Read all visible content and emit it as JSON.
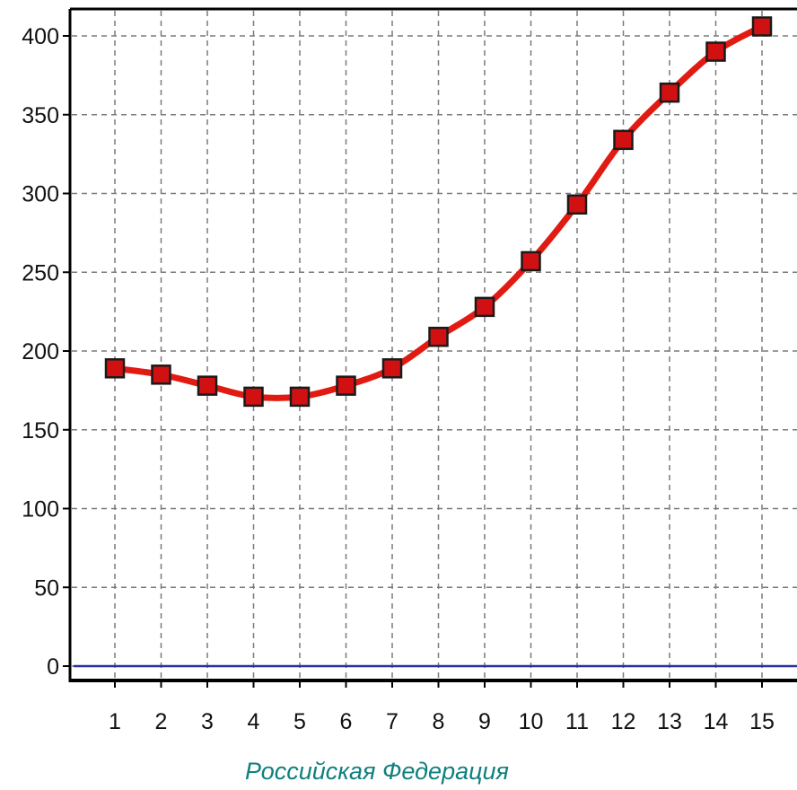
{
  "colors": {
    "background": "#ffffff",
    "axis": "#000000",
    "grid": "#7a7a7a",
    "main_line": "#e21b12",
    "marker_fill": "#d11111",
    "marker_stroke": "#1a1a1a",
    "baseline_line": "#2b2f9e",
    "x_label_color": "#0f7f7f"
  },
  "chart_data": {
    "type": "line",
    "title": "",
    "xlabel": "Российская Федерация",
    "ylabel": "",
    "categories": [
      "1",
      "2",
      "3",
      "4",
      "5",
      "6",
      "7",
      "8",
      "9",
      "10",
      "11",
      "12",
      "13",
      "14",
      "15"
    ],
    "x": [
      1,
      2,
      3,
      4,
      5,
      6,
      7,
      8,
      9,
      10,
      11,
      12,
      13,
      14,
      15
    ],
    "ylim": [
      0,
      400
    ],
    "yticks": [
      0,
      50,
      100,
      150,
      200,
      250,
      300,
      350,
      400
    ],
    "grid": true,
    "series": [
      {
        "values": [
          189,
          185,
          178,
          171,
          171,
          178,
          189,
          209,
          228,
          257,
          293,
          334,
          364,
          390,
          406
        ],
        "color": "#e21b12",
        "marker": "square"
      },
      {
        "values": [
          0,
          0,
          0,
          0,
          0,
          0,
          0,
          0,
          0,
          0,
          0,
          0,
          0,
          0,
          0
        ],
        "color": "#2b2f9e",
        "marker": "none"
      }
    ]
  }
}
